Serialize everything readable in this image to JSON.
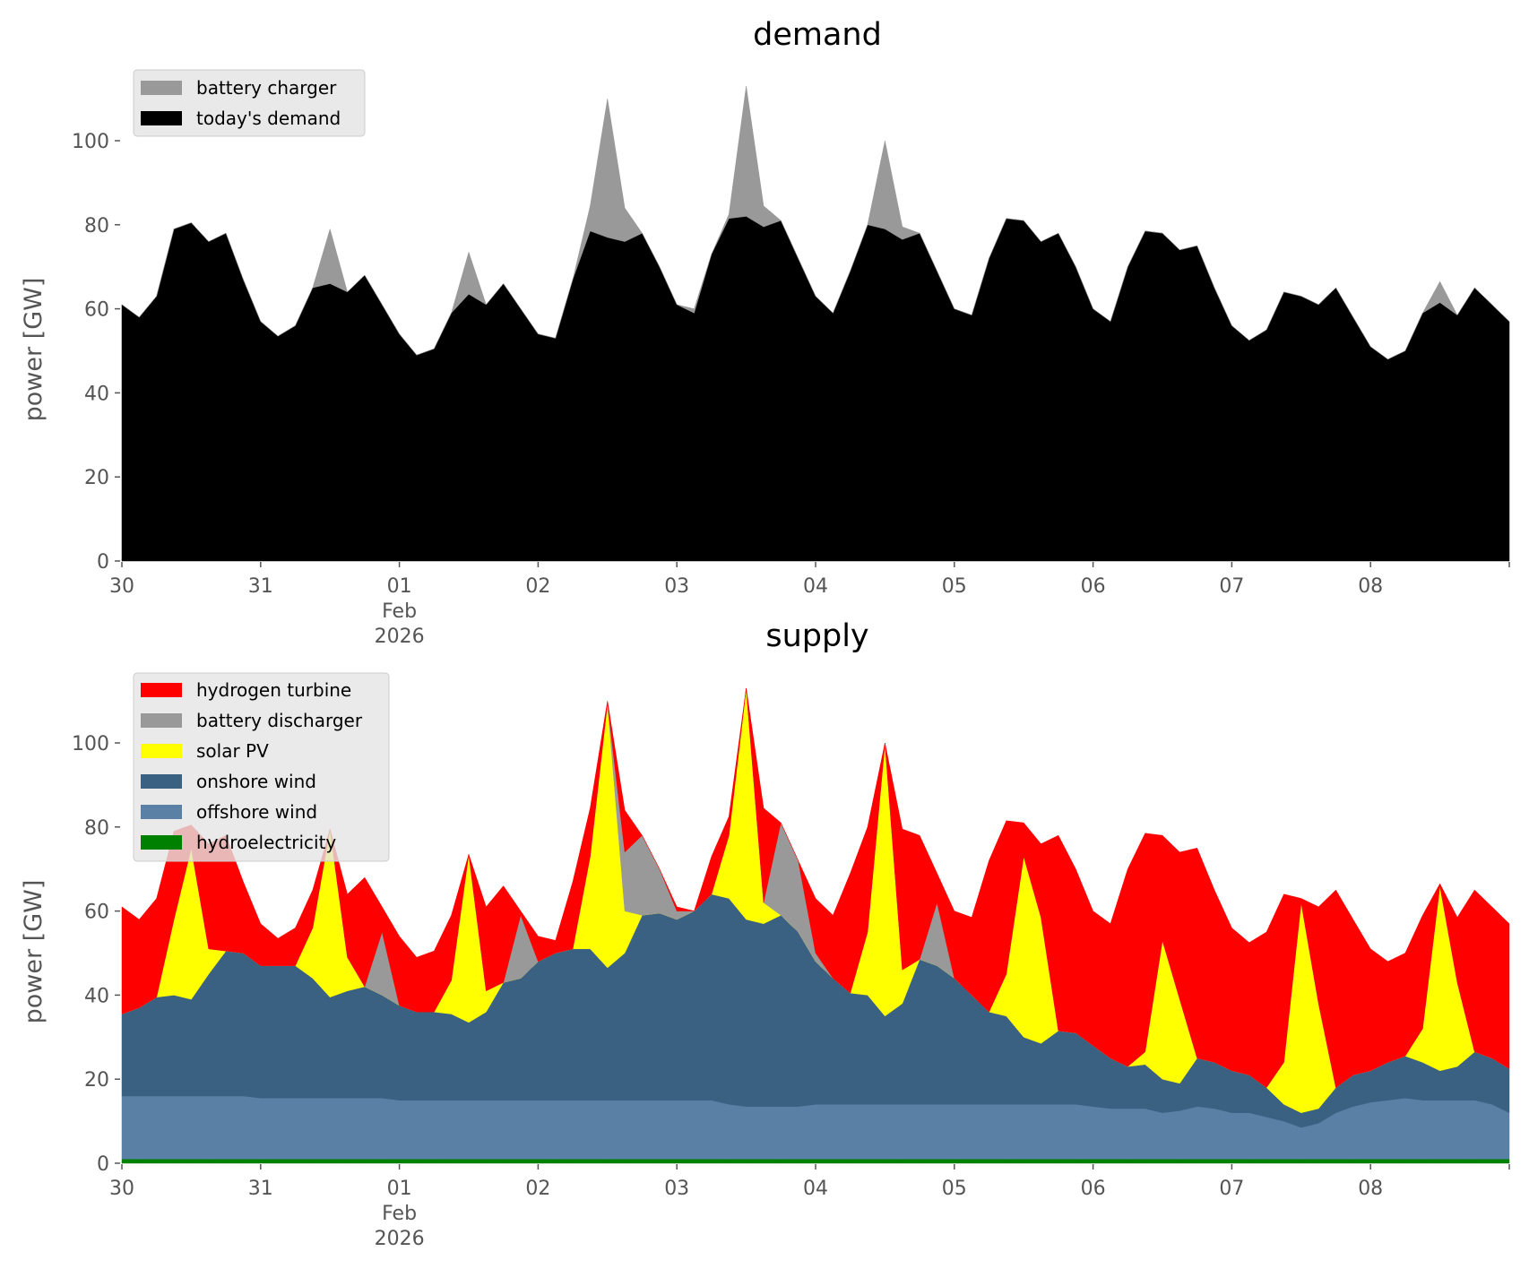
{
  "chart_data": [
    {
      "type": "area",
      "stacked": true,
      "title": "demand",
      "ylabel": "power [GW]",
      "ylim": [
        0,
        115
      ],
      "yticks": [
        0,
        20,
        40,
        60,
        80,
        100
      ],
      "xlim": [
        "2026-01-30 00:00",
        "2026-02-09 00:00"
      ],
      "xtick_labels": [
        "30",
        "31",
        "01",
        "02",
        "03",
        "04",
        "05",
        "06",
        "07",
        "08"
      ],
      "xtick_sublabels": {
        "month": "Feb",
        "year": "2026"
      },
      "grid": false,
      "legend_placement": "top-left",
      "legend": [
        "battery charger",
        "today's demand"
      ],
      "series": [
        {
          "name": "today's demand",
          "color": "#000000",
          "values": [
            61,
            58,
            63,
            79,
            80.5,
            76,
            78,
            67,
            57,
            53.5,
            56,
            65,
            66,
            64,
            68,
            61,
            54,
            49,
            50.5,
            59,
            63.5,
            61,
            66,
            60,
            54,
            53,
            67,
            78.5,
            77,
            76,
            78,
            70,
            61,
            59,
            73,
            81.5,
            82,
            79.5,
            81,
            72,
            63,
            59,
            69,
            80,
            79,
            76.5,
            78,
            69,
            60,
            58.5,
            72,
            81.5,
            81,
            76,
            78,
            70,
            60,
            57,
            70,
            78.5,
            78,
            74,
            75,
            65,
            56,
            52.5,
            55,
            64,
            63,
            61,
            65,
            58,
            51,
            48,
            50,
            59,
            61.5,
            58.5,
            65,
            61,
            57
          ]
        },
        {
          "name": "battery charger",
          "color": "#999999",
          "values": [
            0,
            0,
            0,
            0,
            0,
            0,
            0,
            0,
            0,
            0,
            0,
            0,
            13,
            0,
            0,
            0,
            0,
            0,
            0,
            0,
            10,
            0,
            0,
            0,
            0,
            0,
            0,
            6,
            33,
            8,
            0,
            0,
            0,
            1,
            0,
            1,
            31,
            5,
            0,
            0,
            0,
            0,
            0,
            0,
            21,
            3,
            0,
            0,
            0,
            0,
            0,
            0,
            0,
            0,
            0,
            0,
            0,
            0,
            0,
            0,
            0,
            0,
            0,
            0,
            0,
            0,
            0,
            0,
            0,
            0,
            0,
            0,
            0,
            0,
            0,
            0,
            5,
            0,
            0,
            0,
            0
          ]
        }
      ]
    },
    {
      "type": "area",
      "stacked": true,
      "title": "supply",
      "ylabel": "power [GW]",
      "ylim": [
        0,
        115
      ],
      "yticks": [
        0,
        20,
        40,
        60,
        80,
        100
      ],
      "xlim": [
        "2026-01-30 00:00",
        "2026-02-09 00:00"
      ],
      "xtick_labels": [
        "30",
        "31",
        "01",
        "02",
        "03",
        "04",
        "05",
        "06",
        "07",
        "08"
      ],
      "xtick_sublabels": {
        "month": "Feb",
        "year": "2026"
      },
      "grid": false,
      "legend_placement": "top-left",
      "legend": [
        "hydrogen turbine",
        "battery discharger",
        "solar PV",
        "onshore wind",
        "offshore wind",
        "hydroelectricity"
      ],
      "series": [
        {
          "name": "hydroelectricity",
          "color": "#008000",
          "values": [
            1,
            1,
            1,
            1,
            1,
            1,
            1,
            1,
            1,
            1,
            1,
            1,
            1,
            1,
            1,
            1,
            1,
            1,
            1,
            1,
            1,
            1,
            1,
            1,
            1,
            1,
            1,
            1,
            1,
            1,
            1,
            1,
            1,
            1,
            1,
            1,
            1,
            1,
            1,
            1,
            1,
            1,
            1,
            1,
            1,
            1,
            1,
            1,
            1,
            1,
            1,
            1,
            1,
            1,
            1,
            1,
            1,
            1,
            1,
            1,
            1,
            1,
            1,
            1,
            1,
            1,
            1,
            1,
            1,
            1,
            1,
            1,
            1,
            1,
            1,
            1,
            1,
            1,
            1,
            1,
            1
          ]
        },
        {
          "name": "offshore wind",
          "color": "#5b80a5",
          "values": [
            15,
            15,
            15,
            15,
            15,
            15,
            15,
            15,
            14.5,
            14.5,
            14.5,
            14.5,
            14.5,
            14.5,
            14.5,
            14.5,
            14,
            14,
            14,
            14,
            14,
            14,
            14,
            14,
            14,
            14,
            14,
            14,
            14,
            14,
            14,
            14,
            14,
            14,
            14,
            13,
            12.5,
            12.5,
            12.5,
            12.5,
            13,
            13,
            13,
            13,
            13,
            13,
            13,
            13,
            13,
            13,
            13,
            13,
            13,
            13,
            13,
            13,
            12.5,
            12,
            12,
            12,
            11,
            11.5,
            12.5,
            12,
            11,
            11,
            10,
            9,
            7.5,
            8.5,
            11,
            12.5,
            13.5,
            14,
            14.5,
            14,
            14,
            14,
            14,
            13,
            11
          ]
        },
        {
          "name": "onshore wind",
          "color": "#3b6182",
          "values": [
            19.5,
            21,
            23.5,
            24,
            23,
            29,
            34.5,
            34,
            31.5,
            31.5,
            31.5,
            28.5,
            24,
            25.5,
            26.5,
            24.5,
            22.5,
            21,
            21,
            20.5,
            18.5,
            21,
            28,
            29,
            33,
            35,
            36,
            36,
            31.5,
            35,
            44,
            44.5,
            43,
            45,
            49,
            49,
            44.5,
            43.5,
            45.5,
            41.5,
            34,
            30,
            26.5,
            26,
            21,
            24,
            34.5,
            33,
            30,
            26,
            22,
            21,
            16,
            14.5,
            17.5,
            17,
            14.5,
            12,
            10,
            10.5,
            8,
            6.5,
            11.5,
            11,
            10,
            9,
            7,
            4,
            3.5,
            3.5,
            6,
            7.5,
            7.5,
            9,
            10,
            9,
            7,
            8,
            11.5,
            11,
            10.5
          ]
        },
        {
          "name": "solar PV",
          "color": "#ffff00",
          "values": [
            0,
            0,
            0,
            18,
            36,
            6,
            0,
            0,
            0,
            0,
            0,
            12,
            40,
            8,
            0,
            0,
            0,
            0,
            0,
            8,
            40,
            5,
            0,
            0,
            0,
            0,
            0,
            22,
            63,
            10,
            0,
            0,
            0,
            0,
            0,
            15,
            55,
            5,
            0,
            0,
            0,
            0,
            0,
            15,
            65,
            8,
            0,
            0,
            0,
            0,
            0,
            10,
            43,
            30,
            0,
            0,
            0,
            0,
            0,
            3,
            33,
            20,
            0,
            0,
            0,
            0,
            0,
            10,
            50,
            25,
            0,
            0,
            0,
            0,
            0,
            8,
            44,
            20,
            0,
            0,
            0
          ]
        },
        {
          "name": "battery discharger",
          "color": "#999999",
          "values": [
            0,
            0,
            0,
            0,
            0,
            0,
            0,
            0,
            0,
            0,
            0,
            0,
            0,
            0,
            0,
            15,
            0,
            0,
            0,
            0,
            0,
            0,
            0,
            15,
            0,
            0,
            0,
            0,
            0,
            14,
            19,
            10.5,
            2,
            0,
            0,
            0,
            0,
            0,
            22,
            17,
            2,
            0,
            0,
            0,
            0,
            0,
            0,
            15,
            0,
            0,
            0,
            0,
            0,
            0,
            0,
            0,
            0,
            0,
            0,
            0,
            0,
            0,
            0,
            0,
            0,
            0,
            0,
            0,
            0,
            0,
            0,
            0,
            0,
            0,
            0,
            0,
            0,
            0,
            0,
            0,
            0
          ]
        },
        {
          "name": "hydrogen turbine",
          "color": "#ff0000",
          "values": [
            25.5,
            21,
            23.5,
            21,
            5.5,
            25,
            27.5,
            17,
            10,
            6.5,
            9,
            9,
            0,
            15,
            26,
            6,
            16.5,
            13,
            14.5,
            15.5,
            0,
            20,
            23,
            1,
            6,
            3,
            16,
            11.5,
            0.5,
            10,
            0,
            0,
            1,
            0,
            9,
            4.5,
            0,
            22.5,
            0,
            0,
            13,
            15,
            28.5,
            25,
            0,
            33.5,
            29.5,
            7,
            16,
            18.5,
            36,
            36.5,
            8,
            17.5,
            46.5,
            39,
            32,
            32,
            47,
            52,
            25,
            35,
            50,
            41,
            34,
            31.5,
            37,
            40,
            1,
            23,
            47,
            37,
            29,
            24,
            24.5,
            27,
            0.5,
            15.5,
            38.5,
            36,
            34.5
          ]
        }
      ]
    }
  ]
}
